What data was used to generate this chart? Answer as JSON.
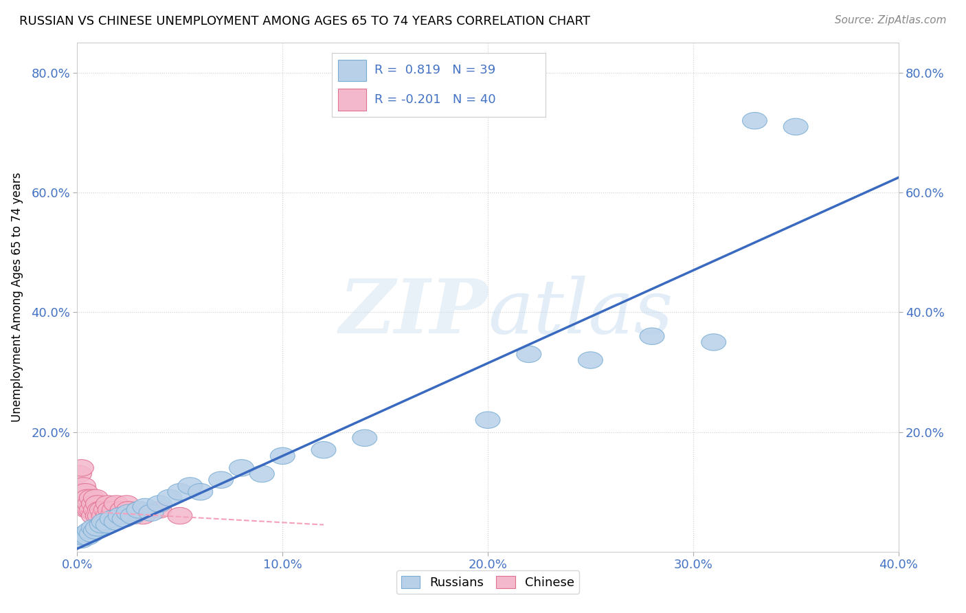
{
  "title": "RUSSIAN VS CHINESE UNEMPLOYMENT AMONG AGES 65 TO 74 YEARS CORRELATION CHART",
  "source": "Source: ZipAtlas.com",
  "ylabel": "Unemployment Among Ages 65 to 74 years",
  "xlabel": "",
  "xlim": [
    0.0,
    0.4
  ],
  "ylim": [
    0.0,
    0.85
  ],
  "xtick_labels": [
    "0.0%",
    "10.0%",
    "20.0%",
    "30.0%",
    "40.0%"
  ],
  "xtick_vals": [
    0.0,
    0.1,
    0.2,
    0.3,
    0.4
  ],
  "ytick_labels": [
    "20.0%",
    "40.0%",
    "60.0%",
    "80.0%"
  ],
  "ytick_vals": [
    0.2,
    0.4,
    0.6,
    0.8
  ],
  "russian_color_fill": "#b8d0e8",
  "russian_color_edge": "#7aadd4",
  "chinese_color_fill": "#f4b8cc",
  "chinese_color_edge": "#e07090",
  "russian_line_color": "#3a6abf",
  "chinese_line_color": "#f4a0b8",
  "watermark_text": "ZIPatlas",
  "background_color": "#ffffff",
  "grid_color": "#c8c8c8",
  "russian_line_x": [
    0.0,
    0.4
  ],
  "russian_line_y": [
    0.005,
    0.625
  ],
  "chinese_line_x": [
    0.0,
    0.12
  ],
  "chinese_line_y": [
    0.068,
    0.045
  ],
  "russian_x": [
    0.002,
    0.003,
    0.004,
    0.005,
    0.006,
    0.007,
    0.008,
    0.009,
    0.01,
    0.012,
    0.013,
    0.015,
    0.017,
    0.019,
    0.021,
    0.023,
    0.025,
    0.027,
    0.03,
    0.033,
    0.036,
    0.04,
    0.045,
    0.05,
    0.055,
    0.06,
    0.07,
    0.08,
    0.09,
    0.1,
    0.12,
    0.14,
    0.2,
    0.22,
    0.25,
    0.28,
    0.31,
    0.33,
    0.35
  ],
  "russian_y": [
    0.02,
    0.025,
    0.03,
    0.025,
    0.035,
    0.03,
    0.04,
    0.035,
    0.04,
    0.045,
    0.05,
    0.045,
    0.055,
    0.05,
    0.06,
    0.055,
    0.065,
    0.06,
    0.07,
    0.075,
    0.065,
    0.08,
    0.09,
    0.1,
    0.11,
    0.1,
    0.12,
    0.14,
    0.13,
    0.16,
    0.17,
    0.19,
    0.22,
    0.33,
    0.32,
    0.36,
    0.35,
    0.72,
    0.71
  ],
  "chinese_x": [
    0.001,
    0.002,
    0.002,
    0.003,
    0.003,
    0.004,
    0.004,
    0.005,
    0.005,
    0.006,
    0.006,
    0.007,
    0.007,
    0.008,
    0.008,
    0.009,
    0.009,
    0.01,
    0.01,
    0.011,
    0.011,
    0.012,
    0.013,
    0.014,
    0.015,
    0.015,
    0.016,
    0.017,
    0.018,
    0.019,
    0.02,
    0.022,
    0.023,
    0.024,
    0.025,
    0.027,
    0.03,
    0.032,
    0.04,
    0.05
  ],
  "chinese_y": [
    0.13,
    0.1,
    0.14,
    0.09,
    0.11,
    0.1,
    0.08,
    0.07,
    0.09,
    0.07,
    0.08,
    0.07,
    0.09,
    0.06,
    0.08,
    0.07,
    0.09,
    0.06,
    0.08,
    0.07,
    0.06,
    0.07,
    0.06,
    0.07,
    0.06,
    0.08,
    0.07,
    0.06,
    0.07,
    0.08,
    0.06,
    0.07,
    0.06,
    0.08,
    0.07,
    0.06,
    0.07,
    0.06,
    0.07,
    0.06
  ]
}
